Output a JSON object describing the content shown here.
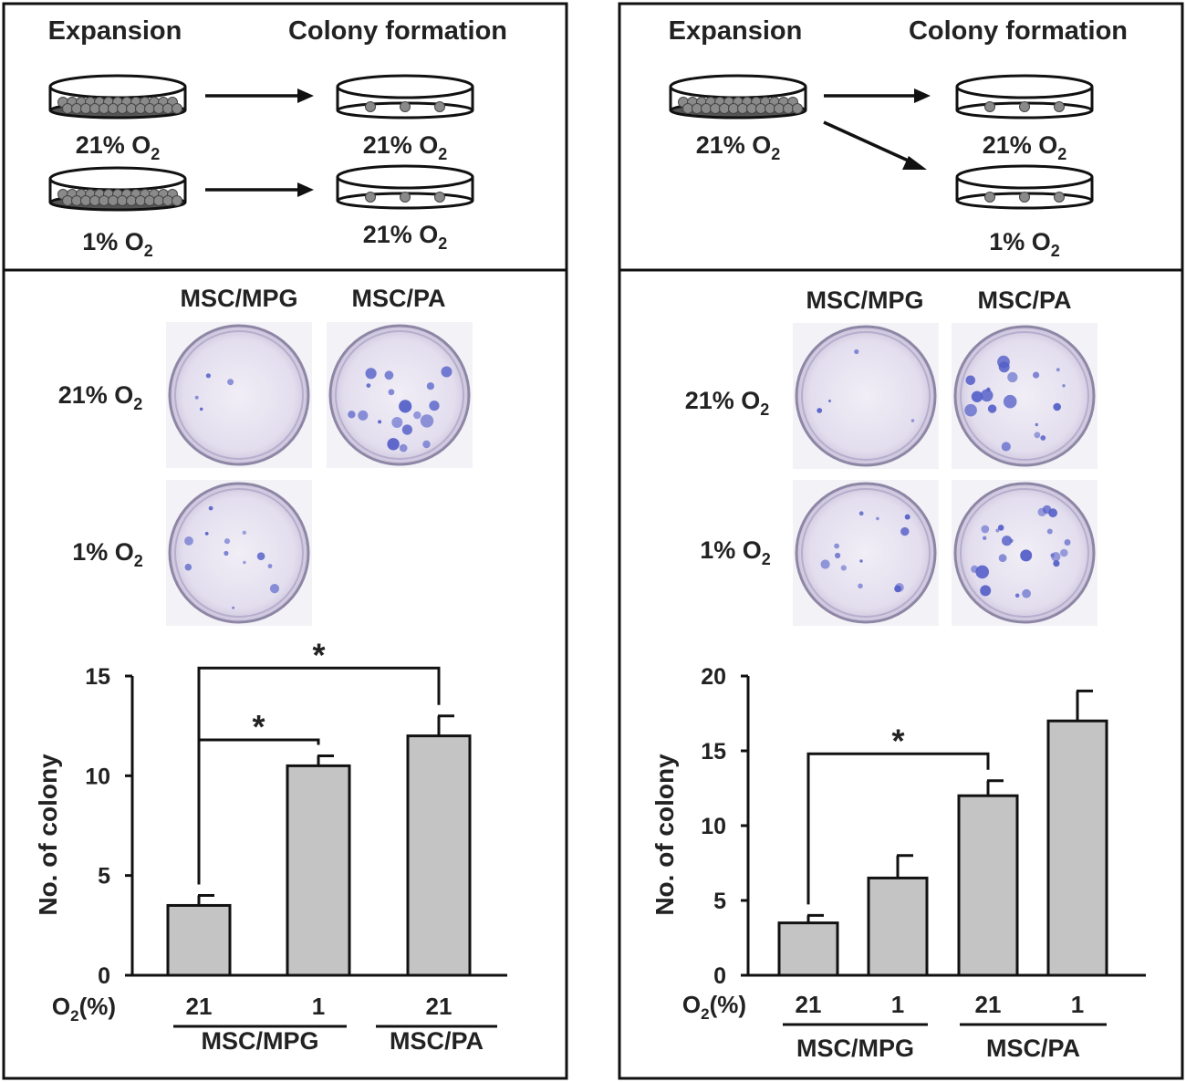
{
  "colors": {
    "bar_fill": "#c4c4c4",
    "stroke": "#111111",
    "dish_particle": "#8a8a8a",
    "plate_bg": "#ece9f2",
    "stain": "#5560c8"
  },
  "panels": [
    {
      "schematic": {
        "heading_left": "Expansion",
        "heading_right": "Colony formation",
        "dishes": [
          {
            "label": "21%",
            "gas": "O",
            "sub": "2",
            "kind": "expansion"
          },
          {
            "label": "21%",
            "gas": "O",
            "sub": "2",
            "kind": "colony"
          },
          {
            "label": "1%",
            "gas": "O",
            "sub": "2",
            "kind": "expansion"
          },
          {
            "label": "21%",
            "gas": "O",
            "sub": "2",
            "kind": "colony"
          }
        ]
      },
      "plates": {
        "col_labels": [
          "MSC/MPG",
          "MSC/PA"
        ],
        "row_labels": [
          {
            "label": "21%",
            "gas": "O",
            "sub": "2"
          },
          {
            "label": "1%",
            "gas": "O",
            "sub": "2"
          }
        ]
      },
      "chart_data": {
        "type": "bar",
        "ylabel": "No. of colony",
        "ylim": [
          0,
          15
        ],
        "yticks": [
          "0",
          "5",
          "10",
          "15"
        ],
        "x_axis_label": {
          "main": "O",
          "sub": "2",
          "rest": "(%)"
        },
        "categories": [
          "21",
          "1",
          "21"
        ],
        "values": [
          3.5,
          10.5,
          12.0
        ],
        "errors": [
          0.5,
          0.5,
          1.0
        ],
        "groups": [
          {
            "label": "MSC/MPG",
            "members": [
              0,
              1
            ]
          },
          {
            "label": "MSC/PA",
            "members": [
              2
            ]
          }
        ],
        "significance": [
          {
            "from": 0,
            "to": 1,
            "label": "*"
          },
          {
            "from": 0,
            "to": 2,
            "label": "*"
          }
        ]
      }
    },
    {
      "schematic": {
        "heading_left": "Expansion",
        "heading_right": "Colony formation",
        "dishes": [
          {
            "label": "21%",
            "gas": "O",
            "sub": "2",
            "kind": "expansion"
          },
          {
            "label": "21%",
            "gas": "O",
            "sub": "2",
            "kind": "colony"
          },
          {
            "label": "1%",
            "gas": "O",
            "sub": "2",
            "kind": "colony"
          }
        ]
      },
      "plates": {
        "col_labels": [
          "MSC/MPG",
          "MSC/PA"
        ],
        "row_labels": [
          {
            "label": "21%",
            "gas": "O",
            "sub": "2"
          },
          {
            "label": "1%",
            "gas": "O",
            "sub": "2"
          }
        ]
      },
      "chart_data": {
        "type": "bar",
        "ylabel": "No. of colony",
        "ylim": [
          0,
          20
        ],
        "yticks": [
          "0",
          "5",
          "10",
          "15",
          "20"
        ],
        "x_axis_label": {
          "main": "O",
          "sub": "2",
          "rest": "(%)"
        },
        "categories": [
          "21",
          "1",
          "21",
          "1"
        ],
        "values": [
          3.5,
          6.5,
          12.0,
          17.0
        ],
        "errors": [
          0.5,
          1.5,
          1.0,
          2.0
        ],
        "groups": [
          {
            "label": "MSC/MPG",
            "members": [
              0,
              1
            ]
          },
          {
            "label": "MSC/PA",
            "members": [
              2,
              3
            ]
          }
        ],
        "significance": [
          {
            "from": 0,
            "to": 2,
            "label": "*"
          }
        ]
      }
    }
  ]
}
